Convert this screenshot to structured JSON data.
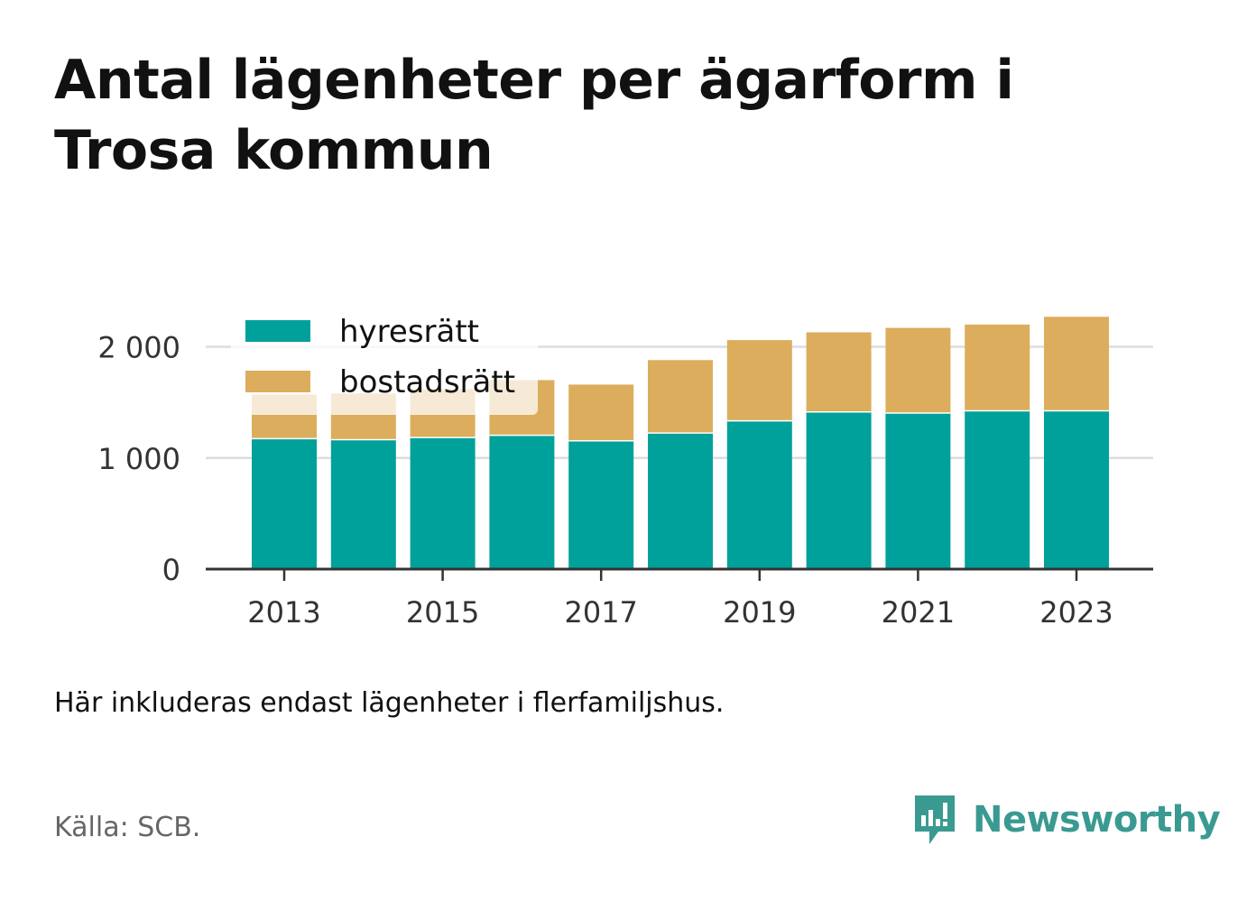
{
  "title": "Antal lägenheter per ägarform i Trosa kommun",
  "note": "Här inkluderas endast lägenheter i flerfamiljshus.",
  "source": "Källa: SCB.",
  "brand": {
    "name": "Newsworthy",
    "icon": "newsworthy-logo-icon",
    "color": "#3a9a92"
  },
  "chart_data": {
    "type": "bar",
    "stacked": true,
    "categories": [
      "2013",
      "2014",
      "2015",
      "2016",
      "2017",
      "2018",
      "2019",
      "2020",
      "2021",
      "2022",
      "2023"
    ],
    "x_tick_labels": [
      "2013",
      "2015",
      "2017",
      "2019",
      "2021",
      "2023"
    ],
    "y_ticks": [
      0,
      1000,
      2000
    ],
    "y_tick_labels": [
      "0",
      "1 000",
      "2 000"
    ],
    "ylim": [
      0,
      2300
    ],
    "grid": true,
    "legend_position": "top-left",
    "series": [
      {
        "name": "hyresrätt",
        "color": "#00a19a",
        "values": [
          1180,
          1170,
          1190,
          1210,
          1160,
          1230,
          1340,
          1420,
          1410,
          1430,
          1430
        ]
      },
      {
        "name": "bostadsrätt",
        "color": "#dcad5c",
        "values": [
          390,
          410,
          430,
          490,
          500,
          650,
          720,
          710,
          760,
          770,
          840
        ]
      }
    ]
  }
}
